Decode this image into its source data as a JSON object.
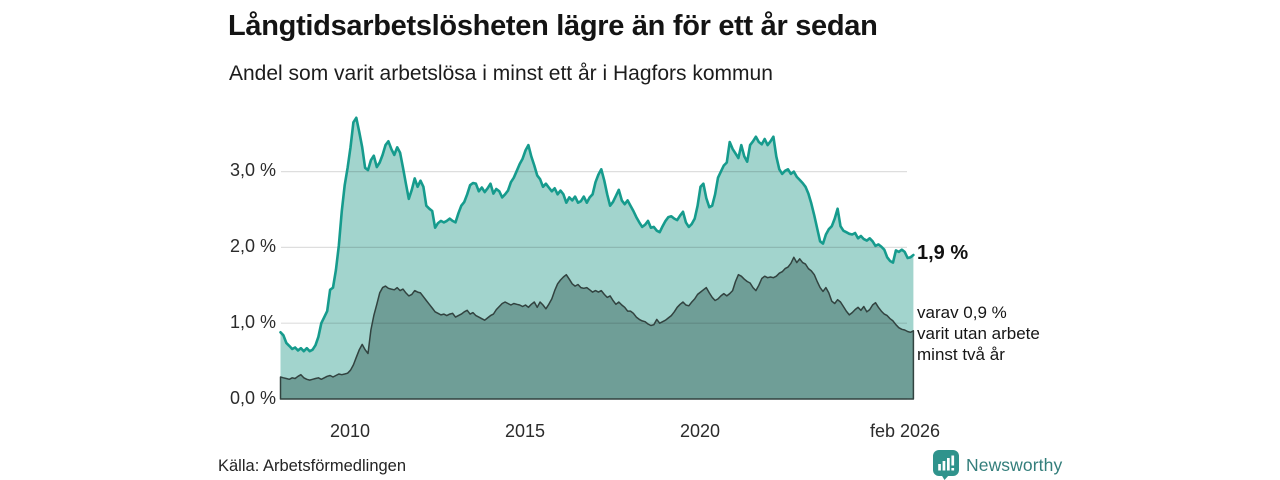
{
  "title": "Långtidsarbetslösheten lägre än för ett år sedan",
  "subtitle": "Andel som varit arbetslösa i minst ett år i Hagfors kommun",
  "source": "Källa: Arbetsförmedlingen",
  "logo": {
    "text": "Newsworthy"
  },
  "annotations": {
    "end_value": "1,9 %",
    "secondary_line1": "varav 0,9 %",
    "secondary_line2": "varit utan arbete",
    "secondary_line3": "minst två år"
  },
  "y_axis": {
    "labels": [
      "3,0 %",
      "2,0 %",
      "1,0 %",
      "0,0 %"
    ],
    "values": [
      3.0,
      2.0,
      1.0,
      0.0
    ]
  },
  "x_axis": {
    "labels": [
      "2010",
      "2015",
      "2020",
      "feb 2026"
    ]
  },
  "colors": {
    "light_fill": "#a2d4cd",
    "light_stroke": "#169b8d",
    "dark_fill": "#6f9e97",
    "dark_stroke": "#324340",
    "grid": "rgba(0,0,0,0.13)",
    "logo_teal": "#2f938c"
  },
  "chart_data": {
    "type": "area",
    "title": "Långtidsarbetslösheten lägre än för ett år sedan",
    "subtitle": "Andel som varit arbetslösa i minst ett år i Hagfors kommun",
    "unit": "%",
    "interval": "monthly",
    "x_start": "2008-01",
    "x_end": "2026-02",
    "ylim": [
      0,
      3.75
    ],
    "grid": true,
    "legend_position": "none",
    "end_labels": {
      "series_1": 1.9,
      "series_2": 0.9
    },
    "series": [
      {
        "name": "Andel arbetslösa minst ett år",
        "values": [
          0.88,
          0.84,
          0.74,
          0.7,
          0.66,
          0.68,
          0.64,
          0.67,
          0.63,
          0.67,
          0.63,
          0.65,
          0.71,
          0.82,
          1.0,
          1.08,
          1.16,
          1.44,
          1.47,
          1.7,
          2.02,
          2.48,
          2.82,
          3.05,
          3.32,
          3.65,
          3.71,
          3.52,
          3.32,
          3.05,
          3.02,
          3.15,
          3.21,
          3.06,
          3.12,
          3.22,
          3.35,
          3.4,
          3.3,
          3.22,
          3.32,
          3.25,
          3.05,
          2.84,
          2.64,
          2.76,
          2.91,
          2.8,
          2.88,
          2.8,
          2.55,
          2.51,
          2.48,
          2.26,
          2.32,
          2.35,
          2.33,
          2.35,
          2.38,
          2.35,
          2.33,
          2.45,
          2.55,
          2.6,
          2.7,
          2.82,
          2.85,
          2.84,
          2.74,
          2.79,
          2.73,
          2.78,
          2.84,
          2.71,
          2.77,
          2.74,
          2.66,
          2.7,
          2.75,
          2.86,
          2.92,
          3.01,
          3.1,
          3.17,
          3.28,
          3.35,
          3.2,
          3.08,
          2.95,
          2.9,
          2.8,
          2.84,
          2.79,
          2.74,
          2.78,
          2.7,
          2.75,
          2.7,
          2.59,
          2.66,
          2.62,
          2.67,
          2.59,
          2.61,
          2.67,
          2.59,
          2.66,
          2.7,
          2.86,
          2.96,
          3.03,
          2.88,
          2.7,
          2.55,
          2.6,
          2.68,
          2.76,
          2.62,
          2.57,
          2.62,
          2.55,
          2.48,
          2.4,
          2.33,
          2.27,
          2.3,
          2.35,
          2.26,
          2.27,
          2.22,
          2.2,
          2.28,
          2.35,
          2.4,
          2.41,
          2.38,
          2.36,
          2.42,
          2.47,
          2.33,
          2.27,
          2.31,
          2.38,
          2.55,
          2.8,
          2.84,
          2.65,
          2.53,
          2.55,
          2.7,
          2.92,
          3.0,
          3.08,
          3.12,
          3.39,
          3.3,
          3.24,
          3.18,
          3.35,
          3.2,
          3.13,
          3.35,
          3.4,
          3.46,
          3.39,
          3.36,
          3.43,
          3.35,
          3.4,
          3.46,
          3.2,
          3.03,
          2.97,
          3.01,
          3.03,
          2.97,
          3.0,
          2.93,
          2.89,
          2.85,
          2.8,
          2.71,
          2.58,
          2.42,
          2.25,
          2.08,
          2.05,
          2.17,
          2.24,
          2.28,
          2.38,
          2.51,
          2.28,
          2.22,
          2.2,
          2.18,
          2.17,
          2.19,
          2.12,
          2.15,
          2.11,
          2.09,
          2.12,
          2.08,
          2.02,
          2.04,
          2.01,
          1.97,
          1.87,
          1.82,
          1.8,
          1.96,
          1.94,
          1.97,
          1.94,
          1.86,
          1.87,
          1.9
        ]
      },
      {
        "name": "varav arbetslösa minst två år",
        "values": [
          0.29,
          0.28,
          0.27,
          0.26,
          0.28,
          0.27,
          0.3,
          0.32,
          0.28,
          0.26,
          0.25,
          0.26,
          0.27,
          0.28,
          0.26,
          0.28,
          0.3,
          0.31,
          0.29,
          0.31,
          0.33,
          0.32,
          0.33,
          0.34,
          0.38,
          0.45,
          0.55,
          0.65,
          0.72,
          0.65,
          0.6,
          0.91,
          1.1,
          1.25,
          1.4,
          1.47,
          1.49,
          1.46,
          1.45,
          1.44,
          1.47,
          1.43,
          1.45,
          1.4,
          1.36,
          1.38,
          1.43,
          1.41,
          1.4,
          1.35,
          1.3,
          1.25,
          1.2,
          1.15,
          1.13,
          1.11,
          1.12,
          1.1,
          1.12,
          1.13,
          1.08,
          1.1,
          1.12,
          1.15,
          1.17,
          1.12,
          1.14,
          1.1,
          1.08,
          1.06,
          1.04,
          1.07,
          1.1,
          1.12,
          1.18,
          1.22,
          1.26,
          1.28,
          1.26,
          1.24,
          1.26,
          1.25,
          1.24,
          1.22,
          1.24,
          1.21,
          1.25,
          1.28,
          1.21,
          1.28,
          1.24,
          1.19,
          1.25,
          1.32,
          1.43,
          1.52,
          1.57,
          1.61,
          1.64,
          1.58,
          1.52,
          1.49,
          1.51,
          1.47,
          1.46,
          1.47,
          1.44,
          1.41,
          1.43,
          1.41,
          1.43,
          1.38,
          1.34,
          1.36,
          1.3,
          1.25,
          1.28,
          1.24,
          1.21,
          1.16,
          1.16,
          1.13,
          1.08,
          1.05,
          1.03,
          1.02,
          0.99,
          0.97,
          0.98,
          1.05,
          1.0,
          1.02,
          1.04,
          1.07,
          1.1,
          1.15,
          1.21,
          1.25,
          1.28,
          1.24,
          1.23,
          1.28,
          1.32,
          1.38,
          1.41,
          1.44,
          1.47,
          1.4,
          1.34,
          1.3,
          1.32,
          1.36,
          1.39,
          1.36,
          1.39,
          1.43,
          1.55,
          1.64,
          1.62,
          1.58,
          1.55,
          1.53,
          1.47,
          1.43,
          1.5,
          1.59,
          1.62,
          1.6,
          1.61,
          1.6,
          1.62,
          1.66,
          1.68,
          1.72,
          1.74,
          1.79,
          1.87,
          1.8,
          1.85,
          1.8,
          1.78,
          1.72,
          1.69,
          1.64,
          1.55,
          1.47,
          1.42,
          1.47,
          1.4,
          1.29,
          1.26,
          1.31,
          1.28,
          1.22,
          1.16,
          1.11,
          1.14,
          1.18,
          1.21,
          1.17,
          1.22,
          1.15,
          1.18,
          1.24,
          1.27,
          1.21,
          1.16,
          1.12,
          1.1,
          1.06,
          1.03,
          0.98,
          0.94,
          0.92,
          0.91,
          0.89,
          0.88,
          0.9
        ]
      }
    ]
  }
}
